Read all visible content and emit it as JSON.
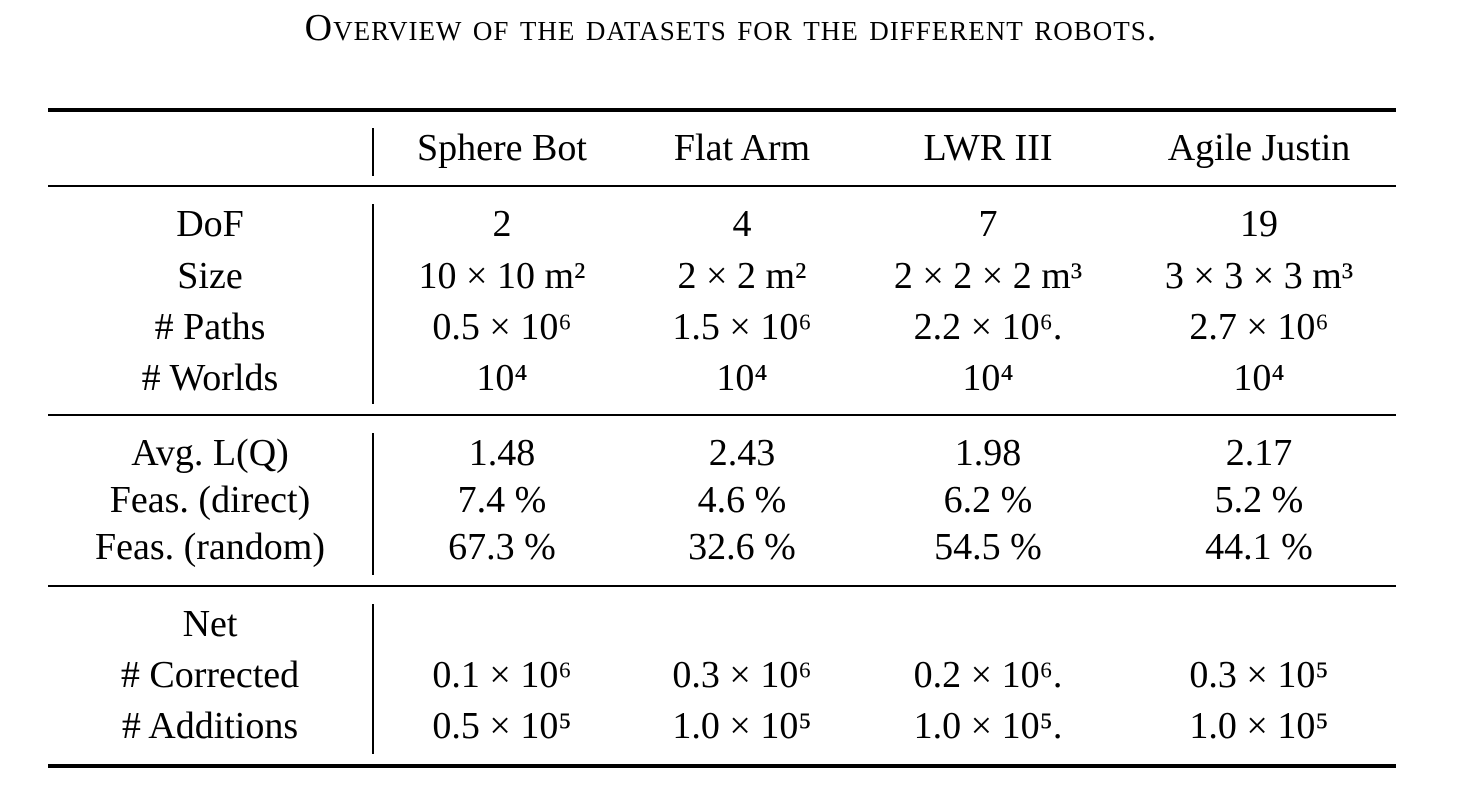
{
  "caption": "Overview of the datasets for the different robots.",
  "table": {
    "columns": [
      "Sphere Bot",
      "Flat Arm",
      "LWR III",
      "Agile Justin"
    ],
    "groups": [
      {
        "rows": [
          {
            "label": "DoF",
            "cells": [
              "2",
              "4",
              "7",
              "19"
            ]
          },
          {
            "label": "Size",
            "cells": [
              "10 × 10 m²",
              "2 × 2 m²",
              "2 × 2 × 2 m³",
              "3 × 3 × 3 m³"
            ]
          },
          {
            "label": "# Paths",
            "cells": [
              "0.5 × 10⁶",
              "1.5 × 10⁶",
              "2.2 × 10⁶.",
              "2.7 × 10⁶"
            ]
          },
          {
            "label": "# Worlds",
            "cells": [
              "10⁴",
              "10⁴",
              "10⁴",
              "10⁴"
            ]
          }
        ]
      },
      {
        "rows": [
          {
            "label": "Avg. L(Q)",
            "cells": [
              "1.48",
              "2.43",
              "1.98",
              "2.17"
            ]
          },
          {
            "label": "Feas. (direct)",
            "cells": [
              "7.4 %",
              "4.6 %",
              "6.2 %",
              "5.2 %"
            ]
          },
          {
            "label": "Feas. (random)",
            "cells": [
              "67.3 %",
              "32.6 %",
              "54.5 %",
              "44.1 %"
            ]
          }
        ]
      },
      {
        "rows": [
          {
            "label": "Net",
            "cells": [
              "",
              "",
              "",
              ""
            ]
          },
          {
            "label": "# Corrected",
            "cells": [
              "0.1 × 10⁶",
              "0.3 × 10⁶",
              "0.2 × 10⁶.",
              "0.3 × 10⁵"
            ]
          },
          {
            "label": "# Additions",
            "cells": [
              "0.5 × 10⁵",
              "1.0 × 10⁵",
              "1.0 × 10⁵.",
              "1.0 × 10⁵"
            ]
          }
        ]
      }
    ]
  }
}
